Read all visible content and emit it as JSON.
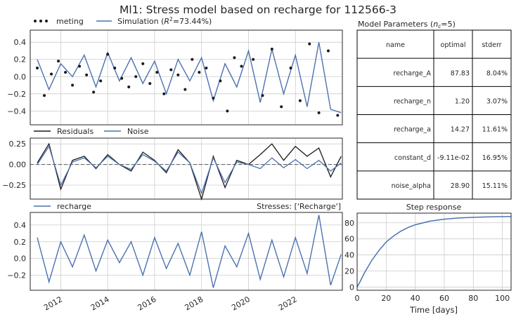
{
  "figure": {
    "title": "Ml1: Stress model based on recharge for 112566-3"
  },
  "colors": {
    "model": "#4c72b0",
    "obs": "#1a1a1a",
    "residuals": "#1a1a1a",
    "grid": "#cccccc",
    "frame": "#262626"
  },
  "chart_data": [
    {
      "id": "head",
      "type": "line",
      "legend": [
        "meting",
        "Simulation (R²=73.44%)"
      ],
      "legend_parts": {
        "obs": "meting",
        "sim_prefix": "Simulation (",
        "sim_R": "R",
        "sim_exp": "2",
        "sim_suffix": "=73.44%)"
      },
      "xlim": [
        2010.7,
        2024.0
      ],
      "ylim": [
        -0.56,
        0.54
      ],
      "yticks": [
        -0.4,
        -0.2,
        0.0,
        0.2,
        0.4
      ],
      "ytick_labels": [
        "−0.4",
        "−0.2",
        "0.0",
        "0.2",
        "0.4"
      ],
      "grid": true,
      "series": [
        {
          "name": "meting",
          "style": "markers",
          "x": [
            2011.0,
            2011.3,
            2011.6,
            2011.9,
            2012.2,
            2012.5,
            2012.8,
            2013.1,
            2013.4,
            2013.7,
            2014.0,
            2014.3,
            2014.6,
            2014.9,
            2015.2,
            2015.5,
            2015.8,
            2016.1,
            2016.4,
            2016.7,
            2017.0,
            2017.3,
            2017.6,
            2017.9,
            2018.2,
            2018.5,
            2018.8,
            2019.1,
            2019.4,
            2019.7,
            2020.2,
            2020.6,
            2021.0,
            2021.4,
            2021.8,
            2022.2,
            2022.6,
            2023.0,
            2023.4,
            2023.8
          ],
          "y": [
            0.1,
            -0.22,
            0.03,
            0.18,
            0.05,
            -0.1,
            0.12,
            0.02,
            -0.18,
            -0.05,
            0.26,
            0.1,
            -0.02,
            -0.12,
            0.0,
            0.15,
            -0.08,
            0.05,
            -0.2,
            0.08,
            0.02,
            -0.15,
            0.2,
            0.05,
            0.1,
            -0.25,
            -0.05,
            -0.4,
            0.22,
            0.12,
            0.2,
            -0.22,
            0.32,
            -0.35,
            0.1,
            -0.28,
            0.38,
            -0.42,
            0.3,
            -0.45
          ]
        },
        {
          "name": "Simulation (R²=73.44%)",
          "style": "line",
          "x": [
            2011.0,
            2011.5,
            2012.0,
            2012.5,
            2013.0,
            2013.5,
            2014.0,
            2014.5,
            2015.0,
            2015.5,
            2016.0,
            2016.5,
            2017.0,
            2017.5,
            2018.0,
            2018.5,
            2019.0,
            2019.5,
            2020.0,
            2020.5,
            2021.0,
            2021.5,
            2022.0,
            2022.5,
            2023.0,
            2023.5,
            2023.95
          ],
          "y": [
            0.2,
            -0.15,
            0.15,
            0.0,
            0.25,
            -0.12,
            0.28,
            -0.05,
            0.22,
            -0.08,
            0.18,
            -0.2,
            0.2,
            -0.05,
            0.22,
            -0.28,
            0.15,
            -0.12,
            0.3,
            -0.3,
            0.32,
            -0.2,
            0.25,
            -0.35,
            0.4,
            -0.38,
            -0.42
          ]
        }
      ]
    },
    {
      "id": "residuals",
      "type": "line",
      "legend": [
        "Residuals",
        "Noise"
      ],
      "xlim": [
        2010.7,
        2024.0
      ],
      "ylim": [
        -0.42,
        0.32
      ],
      "yticks": [
        -0.25,
        0.0,
        0.25
      ],
      "ytick_labels": [
        "−0.25",
        "0.00",
        "0.25"
      ],
      "hline": 0.0,
      "grid": true,
      "series": [
        {
          "name": "Residuals",
          "x": [
            2011.0,
            2011.5,
            2012.0,
            2012.5,
            2013.0,
            2013.5,
            2014.0,
            2014.5,
            2015.0,
            2015.5,
            2016.0,
            2016.5,
            2017.0,
            2017.5,
            2018.0,
            2018.5,
            2019.0,
            2019.5,
            2020.0,
            2020.5,
            2021.0,
            2021.5,
            2022.0,
            2022.5,
            2023.0,
            2023.5,
            2023.95
          ],
          "y": [
            0.02,
            0.25,
            -0.3,
            0.05,
            0.1,
            -0.05,
            0.12,
            0.0,
            -0.08,
            0.15,
            0.05,
            -0.1,
            0.18,
            0.02,
            -0.42,
            0.1,
            -0.28,
            0.05,
            0.0,
            0.12,
            0.25,
            0.05,
            0.22,
            0.1,
            0.2,
            -0.15,
            0.1
          ]
        },
        {
          "name": "Noise",
          "x": [
            2011.0,
            2011.5,
            2012.0,
            2012.5,
            2013.0,
            2013.5,
            2014.0,
            2014.5,
            2015.0,
            2015.5,
            2016.0,
            2016.5,
            2017.0,
            2017.5,
            2018.0,
            2018.5,
            2019.0,
            2019.5,
            2020.0,
            2020.5,
            2021.0,
            2021.5,
            2022.0,
            2022.5,
            2023.0,
            2023.5,
            2023.95
          ],
          "y": [
            0.0,
            0.22,
            -0.25,
            0.03,
            0.08,
            -0.04,
            0.1,
            0.0,
            -0.06,
            0.12,
            0.04,
            -0.08,
            0.15,
            0.02,
            -0.35,
            0.08,
            -0.22,
            0.03,
            0.0,
            -0.05,
            0.08,
            -0.04,
            0.06,
            -0.05,
            0.05,
            -0.08,
            0.02
          ]
        }
      ]
    },
    {
      "id": "stress",
      "type": "line",
      "legend": [
        "recharge"
      ],
      "annotation": "Stresses: ['Recharge']",
      "xlim": [
        2010.7,
        2024.0
      ],
      "ylim": [
        -0.38,
        0.55
      ],
      "yticks": [
        -0.2,
        0.0,
        0.2,
        0.4
      ],
      "ytick_labels": [
        "−0.2",
        "0.0",
        "0.2",
        "0.4"
      ],
      "xticks": [
        2012,
        2014,
        2016,
        2018,
        2020,
        2022
      ],
      "xtick_labels": [
        "2012",
        "2014",
        "2016",
        "2018",
        "2020",
        "2022"
      ],
      "grid": true,
      "series": [
        {
          "name": "recharge",
          "x": [
            2011.0,
            2011.5,
            2012.0,
            2012.5,
            2013.0,
            2013.5,
            2014.0,
            2014.5,
            2015.0,
            2015.5,
            2016.0,
            2016.5,
            2017.0,
            2017.5,
            2018.0,
            2018.5,
            2019.0,
            2019.5,
            2020.0,
            2020.5,
            2021.0,
            2021.5,
            2022.0,
            2022.5,
            2023.0,
            2023.5,
            2023.95
          ],
          "y": [
            0.25,
            -0.28,
            0.2,
            -0.1,
            0.28,
            -0.15,
            0.22,
            -0.05,
            0.2,
            -0.2,
            0.25,
            -0.12,
            0.18,
            -0.2,
            0.32,
            -0.35,
            0.15,
            -0.1,
            0.3,
            -0.25,
            0.22,
            -0.22,
            0.25,
            -0.18,
            0.52,
            -0.32,
            0.05
          ]
        }
      ]
    },
    {
      "id": "step_response",
      "type": "line",
      "title": "Step response",
      "xlabel": "Time [days]",
      "xlim": [
        0,
        106
      ],
      "ylim": [
        -4,
        92
      ],
      "xticks": [
        0,
        20,
        40,
        60,
        80,
        100
      ],
      "yticks": [
        0,
        20,
        40,
        60,
        80
      ],
      "grid": true,
      "series": [
        {
          "name": "step",
          "x": [
            0,
            2,
            5,
            10,
            15,
            20,
            25,
            30,
            35,
            40,
            50,
            60,
            70,
            80,
            90,
            100,
            106
          ],
          "y": [
            0,
            6.5,
            17.5,
            33.0,
            45.5,
            56.0,
            63.5,
            69.5,
            74.0,
            77.5,
            82.0,
            84.5,
            86.0,
            86.8,
            87.3,
            87.6,
            87.7
          ]
        }
      ]
    }
  ],
  "param_table": {
    "title_prefix": "Model Parameters (",
    "title_n": "n",
    "title_sub": "c",
    "title_suffix": "=5)",
    "headers": [
      "name",
      "optimal",
      "stderr"
    ],
    "rows": [
      [
        "recharge_A",
        "87.83",
        "8.04%"
      ],
      [
        "recharge_n",
        "1.20",
        "3.07%"
      ],
      [
        "recharge_a",
        "14.27",
        "11.61%"
      ],
      [
        "constant_d",
        "-9.11e-02",
        "16.95%"
      ],
      [
        "noise_alpha",
        "28.90",
        "15.11%"
      ]
    ]
  }
}
